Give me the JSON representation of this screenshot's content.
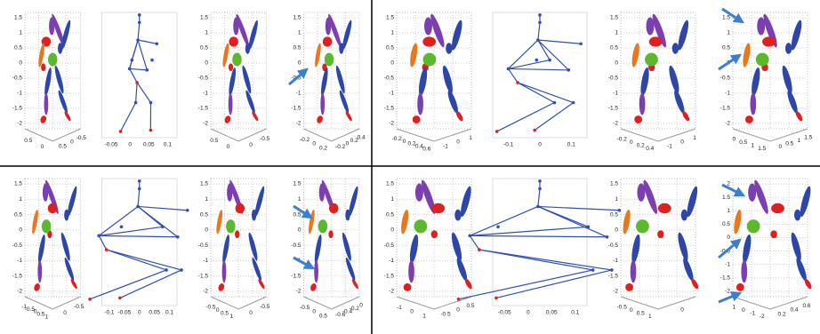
{
  "quadrants": [
    {
      "panels": [
        {
          "kind": "3d",
          "yticks": [
            "1.5",
            "1",
            "0.5",
            "0",
            "-0.5",
            "-1",
            "-1.5",
            "-2"
          ],
          "xticks": [
            "0.5",
            "0"
          ],
          "zticks": [
            "0.5",
            "0",
            "-0.5"
          ]
        },
        {
          "kind": "2d",
          "xticks": [
            "-0.05",
            "0",
            "0.05",
            "0.1"
          ]
        },
        {
          "kind": "3d",
          "yticks": [
            "1.5",
            "1",
            "0.5",
            "0",
            "-0.5",
            "-1",
            "-1.5",
            "-2"
          ],
          "xticks": [
            "0.5",
            "0"
          ],
          "zticks": [
            "0",
            "-0.5"
          ]
        },
        {
          "kind": "3d",
          "yticks": [
            "1.5",
            "1",
            "0.5",
            "0",
            "-0.5",
            "-1",
            "-1.5",
            "-2"
          ],
          "xticks": [
            "-0.2",
            "0",
            "0.2"
          ],
          "zticks": [
            "-0.2",
            "0",
            "0.2",
            "0.4"
          ]
        }
      ]
    },
    {
      "panels": [
        {
          "kind": "3d",
          "yticks": [
            "1.5",
            "1",
            "0.5",
            "0",
            "-0.5",
            "-1",
            "-1.5",
            "-2"
          ],
          "xticks": [
            "-0.2",
            "0",
            "0.2",
            "0.4",
            "0.6"
          ],
          "zticks": [
            "-1",
            "0",
            "1"
          ]
        },
        {
          "kind": "2d",
          "xticks": [
            "-0.1",
            "0",
            "0.1"
          ]
        },
        {
          "kind": "3d",
          "yticks": [
            "1.5",
            "1",
            "0.5",
            "0",
            "-0.5",
            "-1",
            "-1.5",
            "-2"
          ],
          "xticks": [
            "-0.2",
            "0",
            "0.2",
            "0.4"
          ],
          "zticks": [
            "-1",
            "0",
            "1"
          ]
        },
        {
          "kind": "3d",
          "yticks": [
            "1.5",
            "1",
            "0.5",
            "0",
            "-0.5",
            "-1",
            "-1.5",
            "-2"
          ],
          "xticks": [
            "0",
            "0.5",
            "1",
            "1.5"
          ],
          "zticks": [
            "0",
            "0.5",
            "1",
            "1.5"
          ]
        }
      ]
    },
    {
      "panels": [
        {
          "kind": "3d",
          "yticks": [
            "1.5",
            "1",
            "0.5",
            "0",
            "-0.5",
            "-1",
            "-1.5",
            "-2"
          ],
          "xticks": [
            "-1",
            "-0.5",
            "0",
            "0.5",
            "1"
          ],
          "zticks": [
            "0",
            "-0.5"
          ]
        },
        {
          "kind": "2d",
          "xticks": [
            "-0.1",
            "-0.05",
            "0",
            "0.05",
            "0.1"
          ]
        },
        {
          "kind": "3d",
          "yticks": [
            "1.5",
            "1",
            "0.5",
            "0",
            "-0.5",
            "-1",
            "-1.5",
            "-2"
          ],
          "xticks": [
            "-0.5",
            "0",
            "0.5",
            "1"
          ],
          "zticks": [
            "0",
            "-0.5"
          ]
        },
        {
          "kind": "3d",
          "yticks": [
            "1.5",
            "1",
            "0.5",
            "0",
            "-0.5",
            "-1",
            "-1.5",
            "-2"
          ],
          "xticks": [
            "-0.5",
            "0",
            "0.5"
          ],
          "zticks": [
            "-0.6",
            "-0.4",
            "-0.2",
            "0"
          ]
        }
      ]
    },
    {
      "panels": [
        {
          "kind": "3d",
          "yticks": [
            "1.5",
            "1",
            "0.5",
            "0",
            "-0.5",
            "-1",
            "-1.5",
            "-2"
          ],
          "xticks": [
            "-1",
            "0",
            "1"
          ],
          "zticks": [
            "-0.5",
            "0",
            "0.5"
          ]
        },
        {
          "kind": "2d",
          "xticks": [
            "-0.05",
            "0",
            "0.05",
            "0.1"
          ]
        },
        {
          "kind": "3d",
          "yticks": [
            "1.5",
            "1",
            "0.5",
            "0",
            "-0.5",
            "-1",
            "-1.5",
            "-2"
          ],
          "xticks": [
            "-0.5",
            "0",
            "0.5",
            "1"
          ],
          "zticks": [
            "0"
          ]
        },
        {
          "kind": "3d",
          "yticks": [
            "2",
            "1.5",
            "1",
            "0.5",
            "0",
            "-0.5",
            "-1",
            "-1.5",
            "-2"
          ],
          "xticks": [
            "1",
            "0",
            "-1",
            "-2"
          ],
          "zticks": [
            "0.2",
            "0.4",
            "0.6"
          ]
        }
      ]
    }
  ]
}
